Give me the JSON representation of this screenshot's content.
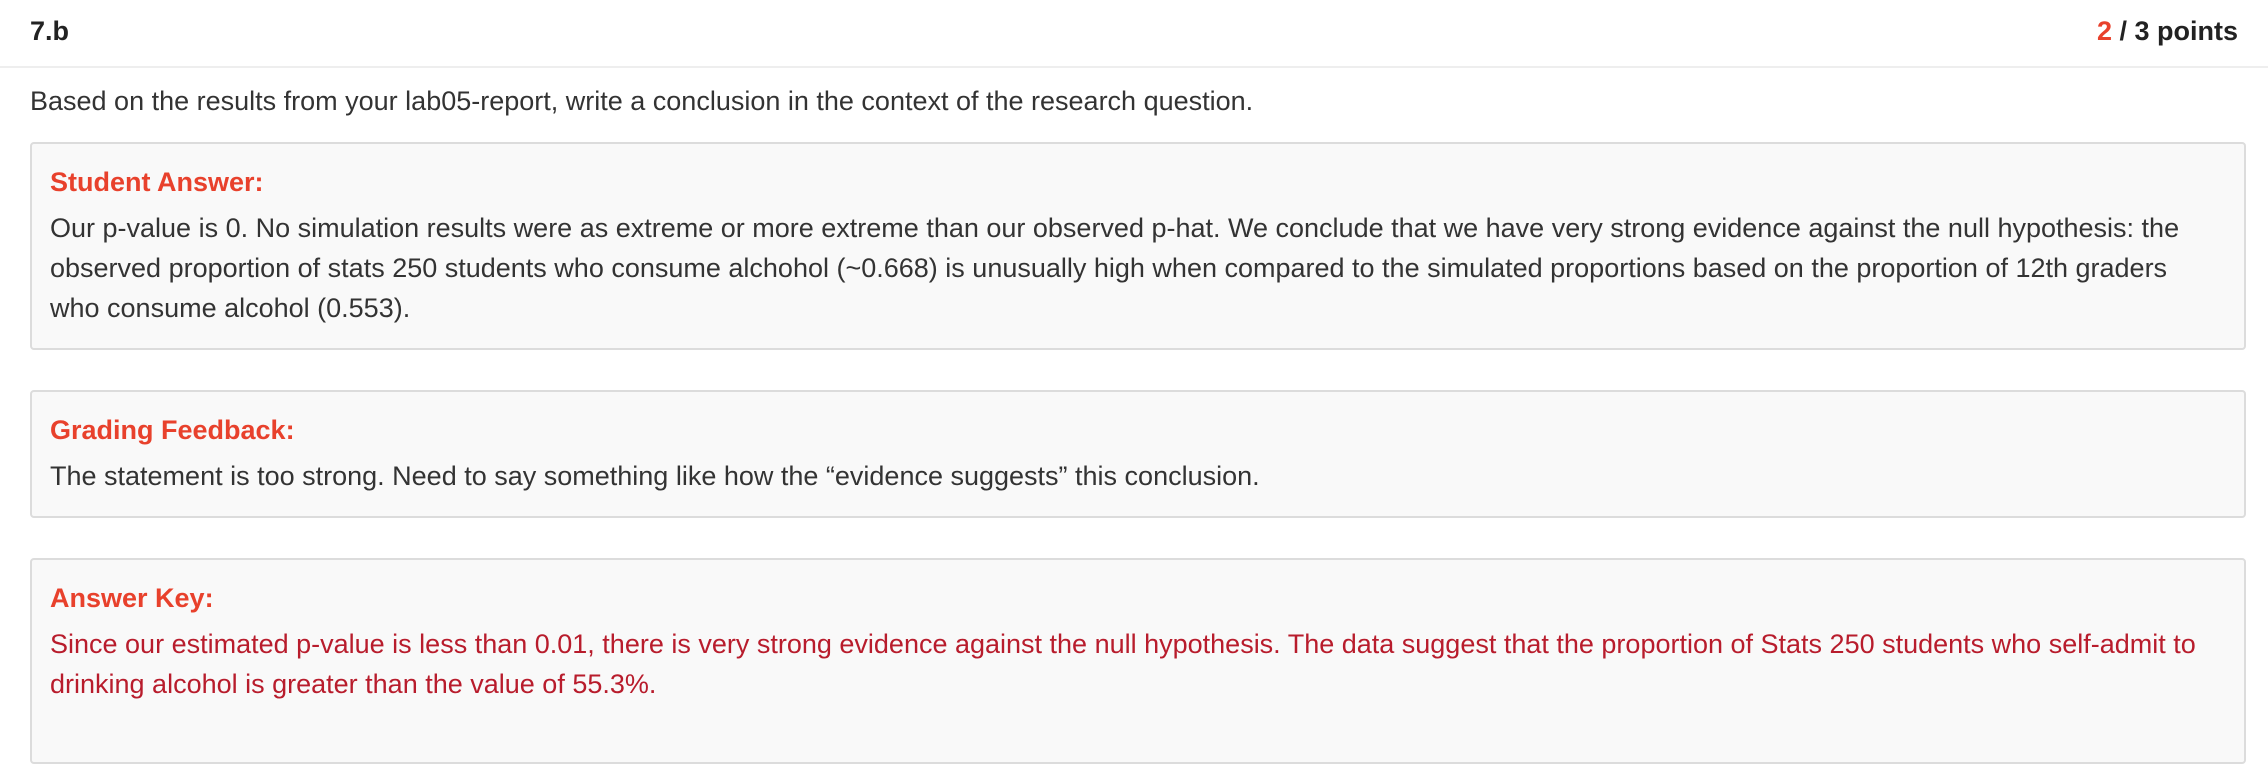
{
  "question": {
    "number": "7.b",
    "points_earned": "2",
    "points_total_text": " / 3 points",
    "prompt": "Based on the results from your lab05-report, write a conclusion in the context of the research question."
  },
  "student_answer": {
    "title": "Student Answer:",
    "text": "Our p-value is 0. No simulation results were as extreme or more extreme than our observed p-hat. We conclude that we have very strong evidence against the null hypothesis: the observed proportion of stats 250 students who consume alchohol (~0.668) is unusually high when compared to the simulated proportions based on the proportion of 12th graders who consume alcohol (0.553)."
  },
  "grading_feedback": {
    "title": "Grading Feedback:",
    "text": "The statement is too strong. Need to say something like how the “evidence suggests” this conclusion."
  },
  "answer_key": {
    "title": "Answer Key:",
    "text": "Since our estimated p-value is less than 0.01, there is very strong evidence against the null hypothesis. The data suggest that the proportion of Stats 250 students who self-admit to drinking alcohol is greater than the value of 55.3%."
  },
  "colors": {
    "accent_red": "#e8412c",
    "answer_key_text": "#b81c2c",
    "panel_bg": "#f9f9f9",
    "panel_border": "#dcdcdc"
  }
}
